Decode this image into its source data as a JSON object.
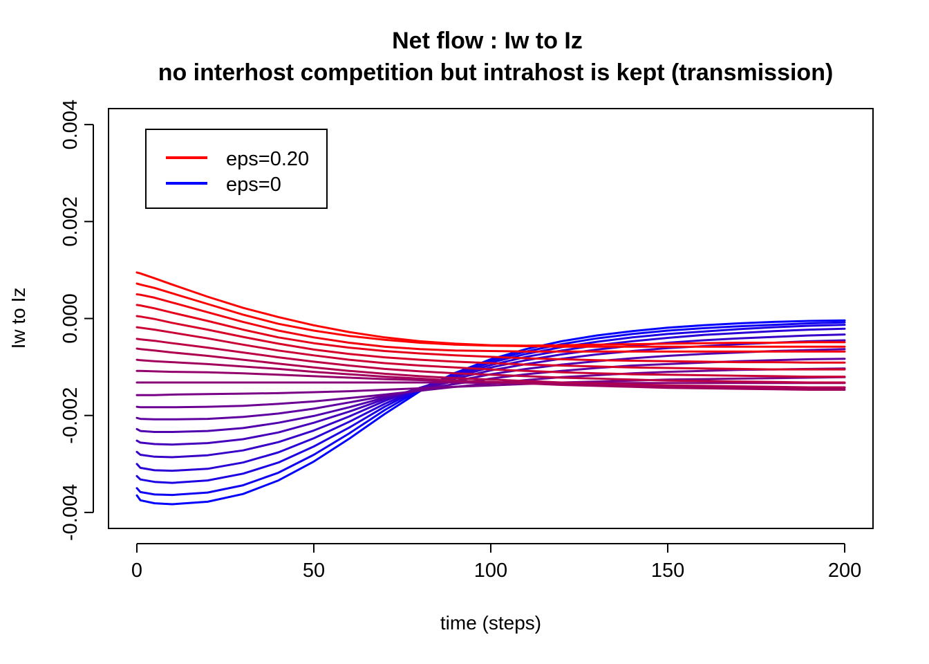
{
  "chart_data": {
    "type": "line",
    "title": "Net flow : Iw to Iz",
    "subtitle": "no interhost competition but intrahost is kept (transmission)",
    "xlabel": "time (steps)",
    "ylabel": "Iw to Iz",
    "xlim": [
      -8,
      208
    ],
    "ylim": [
      -0.00433,
      0.00433
    ],
    "x_ticks": [
      0,
      50,
      100,
      150,
      200
    ],
    "x_tick_labels": [
      "0",
      "50",
      "100",
      "150",
      "200"
    ],
    "y_ticks": [
      -0.004,
      -0.002,
      0.0,
      0.002,
      0.004
    ],
    "y_tick_labels": [
      "-0.004",
      "-0.002",
      "0.000",
      "0.002",
      "0.004"
    ],
    "legend": {
      "position": "top-left",
      "entries": [
        {
          "label": "eps=0.20",
          "color": "#ff0000"
        },
        {
          "label": "eps=0",
          "color": "#0000ff"
        }
      ]
    },
    "x": [
      0,
      1,
      5,
      10,
      20,
      30,
      40,
      50,
      60,
      70,
      80,
      90,
      100,
      110,
      120,
      130,
      140,
      150,
      160,
      170,
      180,
      190,
      200
    ],
    "series": [
      {
        "values": [
          -0.00365,
          -0.00375,
          -0.00381,
          -0.00383,
          -0.00378,
          -0.00362,
          -0.00334,
          -0.00295,
          -0.00248,
          -0.00197,
          -0.0015,
          -0.00112,
          -0.00084,
          -0.00063,
          -0.00047,
          -0.00035,
          -0.00026,
          -0.00019,
          -0.00014,
          -0.0001,
          -7e-05,
          -5e-05,
          -4e-05
        ],
        "color": "#0000ff"
      },
      {
        "values": [
          -0.0035,
          -0.00358,
          -0.00363,
          -0.00364,
          -0.00359,
          -0.00344,
          -0.00318,
          -0.00281,
          -0.00237,
          -0.00189,
          -0.00147,
          -0.00112,
          -0.00087,
          -0.00068,
          -0.00053,
          -0.00041,
          -0.00032,
          -0.00025,
          -0.0002,
          -0.00016,
          -0.00013,
          -0.0001,
          -8e-05
        ],
        "color": "#0e00f1"
      },
      {
        "values": [
          -0.00325,
          -0.00332,
          -0.00337,
          -0.00339,
          -0.00334,
          -0.0032,
          -0.00297,
          -0.00264,
          -0.00225,
          -0.00182,
          -0.00145,
          -0.00114,
          -0.00091,
          -0.00073,
          -0.00059,
          -0.00048,
          -0.00039,
          -0.00032,
          -0.00027,
          -0.00022,
          -0.00018,
          -0.00015,
          -0.00013
        ],
        "color": "#1b00e4"
      },
      {
        "values": [
          -0.003,
          -0.00308,
          -0.00313,
          -0.00314,
          -0.0031,
          -0.00297,
          -0.00276,
          -0.00247,
          -0.00213,
          -0.00176,
          -0.00144,
          -0.00117,
          -0.00096,
          -0.00079,
          -0.00066,
          -0.00055,
          -0.00047,
          -0.0004,
          -0.00034,
          -0.0003,
          -0.00026,
          -0.00023,
          -0.00021
        ],
        "color": "#2900d6"
      },
      {
        "values": [
          -0.00275,
          -0.00281,
          -0.00285,
          -0.00286,
          -0.00282,
          -0.00272,
          -0.00255,
          -0.00231,
          -0.00202,
          -0.0017,
          -0.00143,
          -0.0012,
          -0.00101,
          -0.00086,
          -0.00074,
          -0.00064,
          -0.00056,
          -0.0005,
          -0.00045,
          -0.00041,
          -0.00038,
          -0.00035,
          -0.00033
        ],
        "color": "#3600c9"
      },
      {
        "values": [
          -0.00252,
          -0.00256,
          -0.00259,
          -0.0026,
          -0.00257,
          -0.00249,
          -0.00235,
          -0.00215,
          -0.00192,
          -0.00166,
          -0.00143,
          -0.00124,
          -0.00107,
          -0.00094,
          -0.00083,
          -0.00074,
          -0.00067,
          -0.00061,
          -0.00057,
          -0.00053,
          -0.0005,
          -0.00047,
          -0.00045
        ],
        "color": "#4400bb"
      },
      {
        "values": [
          -0.00228,
          -0.00232,
          -0.00234,
          -0.00234,
          -0.00232,
          -0.00226,
          -0.00215,
          -0.00201,
          -0.00183,
          -0.00163,
          -0.00145,
          -0.00129,
          -0.00115,
          -0.00104,
          -0.00095,
          -0.00088,
          -0.00082,
          -0.00077,
          -0.00073,
          -0.0007,
          -0.00067,
          -0.00065,
          -0.00063
        ],
        "color": "#5100ae"
      },
      {
        "values": [
          -0.00205,
          -0.00207,
          -0.00208,
          -0.00208,
          -0.00207,
          -0.00203,
          -0.00196,
          -0.00186,
          -0.00173,
          -0.0016,
          -0.00147,
          -0.00135,
          -0.00124,
          -0.00115,
          -0.00108,
          -0.00102,
          -0.00097,
          -0.00094,
          -0.00091,
          -0.00088,
          -0.00086,
          -0.00084,
          -0.00083
        ],
        "color": "#5f00a1"
      },
      {
        "values": [
          -0.00182,
          -0.00183,
          -0.00183,
          -0.00183,
          -0.00182,
          -0.0018,
          -0.00176,
          -0.00171,
          -0.00164,
          -0.00157,
          -0.00149,
          -0.00141,
          -0.00134,
          -0.00127,
          -0.00121,
          -0.00117,
          -0.00113,
          -0.0011,
          -0.00108,
          -0.00106,
          -0.00105,
          -0.00104,
          -0.00103
        ],
        "color": "#6c0093"
      },
      {
        "values": [
          -0.00158,
          -0.00158,
          -0.00158,
          -0.00157,
          -0.00156,
          -0.00155,
          -0.00154,
          -0.00152,
          -0.0015,
          -0.00147,
          -0.00144,
          -0.00141,
          -0.00138,
          -0.00135,
          -0.00132,
          -0.0013,
          -0.00128,
          -0.00126,
          -0.00125,
          -0.00124,
          -0.00123,
          -0.00122,
          -0.00121
        ],
        "color": "#790086"
      },
      {
        "values": [
          -0.00132,
          -0.00132,
          -0.00132,
          -0.00132,
          -0.00132,
          -0.00132,
          -0.00132,
          -0.00132,
          -0.00132,
          -0.00132,
          -0.00132,
          -0.00132,
          -0.00133,
          -0.00133,
          -0.00133,
          -0.00133,
          -0.00133,
          -0.00133,
          -0.00133,
          -0.00133,
          -0.00133,
          -0.00133,
          -0.00133
        ],
        "color": "#870078"
      },
      {
        "values": [
          -0.00108,
          -0.00108,
          -0.00109,
          -0.0011,
          -0.00111,
          -0.00113,
          -0.00116,
          -0.00119,
          -0.00122,
          -0.00125,
          -0.00127,
          -0.00129,
          -0.00131,
          -0.00133,
          -0.00135,
          -0.00137,
          -0.00139,
          -0.0014,
          -0.00141,
          -0.00142,
          -0.00143,
          -0.00143,
          -0.00143
        ],
        "color": "#94006b"
      },
      {
        "values": [
          -0.00085,
          -0.00086,
          -0.00088,
          -0.0009,
          -0.00094,
          -0.00099,
          -0.00104,
          -0.0011,
          -0.00115,
          -0.0012,
          -0.00124,
          -0.00128,
          -0.00131,
          -0.00134,
          -0.00137,
          -0.00139,
          -0.00141,
          -0.00143,
          -0.00144,
          -0.00145,
          -0.00146,
          -0.00147,
          -0.00147
        ],
        "color": "#a2005d"
      },
      {
        "values": [
          -0.00062,
          -0.00063,
          -0.00066,
          -0.0007,
          -0.00077,
          -0.00085,
          -0.00093,
          -0.00101,
          -0.00108,
          -0.00114,
          -0.00119,
          -0.00123,
          -0.00126,
          -0.00129,
          -0.00132,
          -0.00134,
          -0.00136,
          -0.00138,
          -0.00139,
          -0.0014,
          -0.00141,
          -0.00142,
          -0.00142
        ],
        "color": "#af0050"
      },
      {
        "values": [
          -0.00042,
          -0.00043,
          -0.00046,
          -0.00051,
          -0.0006,
          -0.0007,
          -0.0008,
          -0.00089,
          -0.00097,
          -0.00104,
          -0.00109,
          -0.00113,
          -0.00116,
          -0.00119,
          -0.00122,
          -0.00124,
          -0.00126,
          -0.00128,
          -0.00129,
          -0.0013,
          -0.00131,
          -0.00132,
          -0.00132
        ],
        "color": "#bc0043"
      },
      {
        "values": [
          -0.00018,
          -0.00019,
          -0.00023,
          -0.00029,
          -0.00041,
          -0.00054,
          -0.00066,
          -0.00076,
          -0.00085,
          -0.00092,
          -0.00097,
          -0.00101,
          -0.00105,
          -0.00108,
          -0.00111,
          -0.00113,
          -0.00115,
          -0.00116,
          -0.00117,
          -0.00118,
          -0.00119,
          -0.0012,
          -0.0012
        ],
        "color": "#ca0035"
      },
      {
        "values": [
          5e-05,
          4e-05,
          -1e-05,
          -9e-05,
          -0.00023,
          -0.00038,
          -0.00052,
          -0.00064,
          -0.00073,
          -0.0008,
          -0.00085,
          -0.00089,
          -0.00092,
          -0.00095,
          -0.00097,
          -0.00099,
          -0.00101,
          -0.00102,
          -0.00103,
          -0.00104,
          -0.00105,
          -0.00105,
          -0.00105
        ],
        "color": "#d70028"
      },
      {
        "values": [
          0.00028,
          0.00027,
          0.00021,
          0.00012,
          -5e-05,
          -0.00023,
          -0.00039,
          -0.00051,
          -0.0006,
          -0.00067,
          -0.00072,
          -0.00076,
          -0.00079,
          -0.00082,
          -0.00084,
          -0.00086,
          -0.00087,
          -0.00088,
          -0.00089,
          -0.0009,
          -0.0009,
          -0.00091,
          -0.00091
        ],
        "color": "#e5001a"
      },
      {
        "values": [
          0.0005,
          0.00049,
          0.00043,
          0.00033,
          0.00013,
          -7e-05,
          -0.00025,
          -0.00039,
          -0.0005,
          -0.00058,
          -0.00063,
          -0.00066,
          -0.00067,
          -0.00068,
          -0.00068,
          -0.00068,
          -0.00068,
          -0.00068,
          -0.00068,
          -0.00068,
          -0.00068,
          -0.00068,
          -0.00068
        ],
        "color": "#f2000d"
      },
      {
        "values": [
          0.00072,
          0.0007,
          0.00063,
          0.00052,
          0.0003,
          8e-05,
          -0.00011,
          -0.00025,
          -0.00036,
          -0.00044,
          -0.0005,
          -0.00054,
          -0.00056,
          -0.00057,
          -0.00058,
          -0.00058,
          -0.00058,
          -0.00058,
          -0.00058,
          -0.00058,
          -0.00058,
          -0.00058,
          -0.00058
        ],
        "color": "#ff0000"
      },
      {
        "values": [
          0.00095,
          0.00093,
          0.00083,
          0.0007,
          0.00045,
          0.00022,
          3e-05,
          -0.00014,
          -0.00028,
          -0.00039,
          -0.00047,
          -0.00052,
          -0.00055,
          -0.00056,
          -0.00055,
          -0.00054,
          -0.00053,
          -0.00052,
          -0.00051,
          -0.0005,
          -0.0005,
          -0.00049,
          -0.00049
        ],
        "color": "#ff0000"
      }
    ]
  }
}
